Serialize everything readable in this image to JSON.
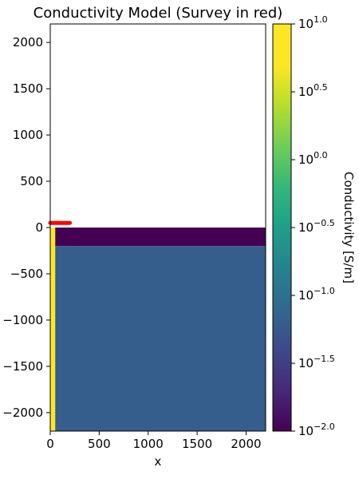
{
  "chart_data": {
    "type": "heatmap",
    "title": "Conductivity Model (Survey in red)",
    "xlabel": "x",
    "ylabel": "",
    "xlim": [
      0,
      2200
    ],
    "ylim": [
      -2200,
      2200
    ],
    "x_ticks": [
      0,
      500,
      1000,
      1500,
      2000
    ],
    "y_ticks": [
      2000,
      1500,
      1000,
      500,
      0,
      -500,
      -1000,
      -1500,
      -2000
    ],
    "x_tick_labels": [
      "0",
      "500",
      "1000",
      "1500",
      "2000"
    ],
    "y_tick_labels": [
      "2000",
      "1500",
      "1000",
      "500",
      "0",
      "−500",
      "−1000",
      "−1500",
      "−2000"
    ],
    "grid": false,
    "regions": [
      {
        "name": "background",
        "x": [
          50,
          2200
        ],
        "y": [
          -2200,
          -200
        ],
        "log10_value": -1.2
      },
      {
        "name": "conductive layer",
        "x": [
          50,
          2200
        ],
        "y": [
          -200,
          0
        ],
        "log10_value": -2.0
      },
      {
        "name": "borehole",
        "x": [
          0,
          50
        ],
        "y": [
          -2200,
          0
        ],
        "log10_value": 1.0
      }
    ],
    "air_region": {
      "x": [
        0,
        2200
      ],
      "y": [
        0,
        2200
      ],
      "color": "#ffffff"
    },
    "survey": {
      "description": "Survey in red",
      "color": "#ff0000",
      "x": [
        0,
        200
      ],
      "y": [
        50,
        50
      ]
    },
    "colorbar": {
      "label": "Conductivity [S/m]",
      "scale": "log",
      "range_log10": [
        -2.0,
        1.0
      ],
      "colormap": "viridis",
      "ticks_log10": [
        1.0,
        0.5,
        0.0,
        -0.5,
        -1.0,
        -1.5,
        -2.0
      ],
      "tick_labels": [
        {
          "base": "10",
          "exp": "1.0"
        },
        {
          "base": "10",
          "exp": "0.5"
        },
        {
          "base": "10",
          "exp": "0.0"
        },
        {
          "base": "10",
          "exp": "−0.5"
        },
        {
          "base": "10",
          "exp": "−1.0"
        },
        {
          "base": "10",
          "exp": "−1.5"
        },
        {
          "base": "10",
          "exp": "−2.0"
        }
      ]
    }
  }
}
